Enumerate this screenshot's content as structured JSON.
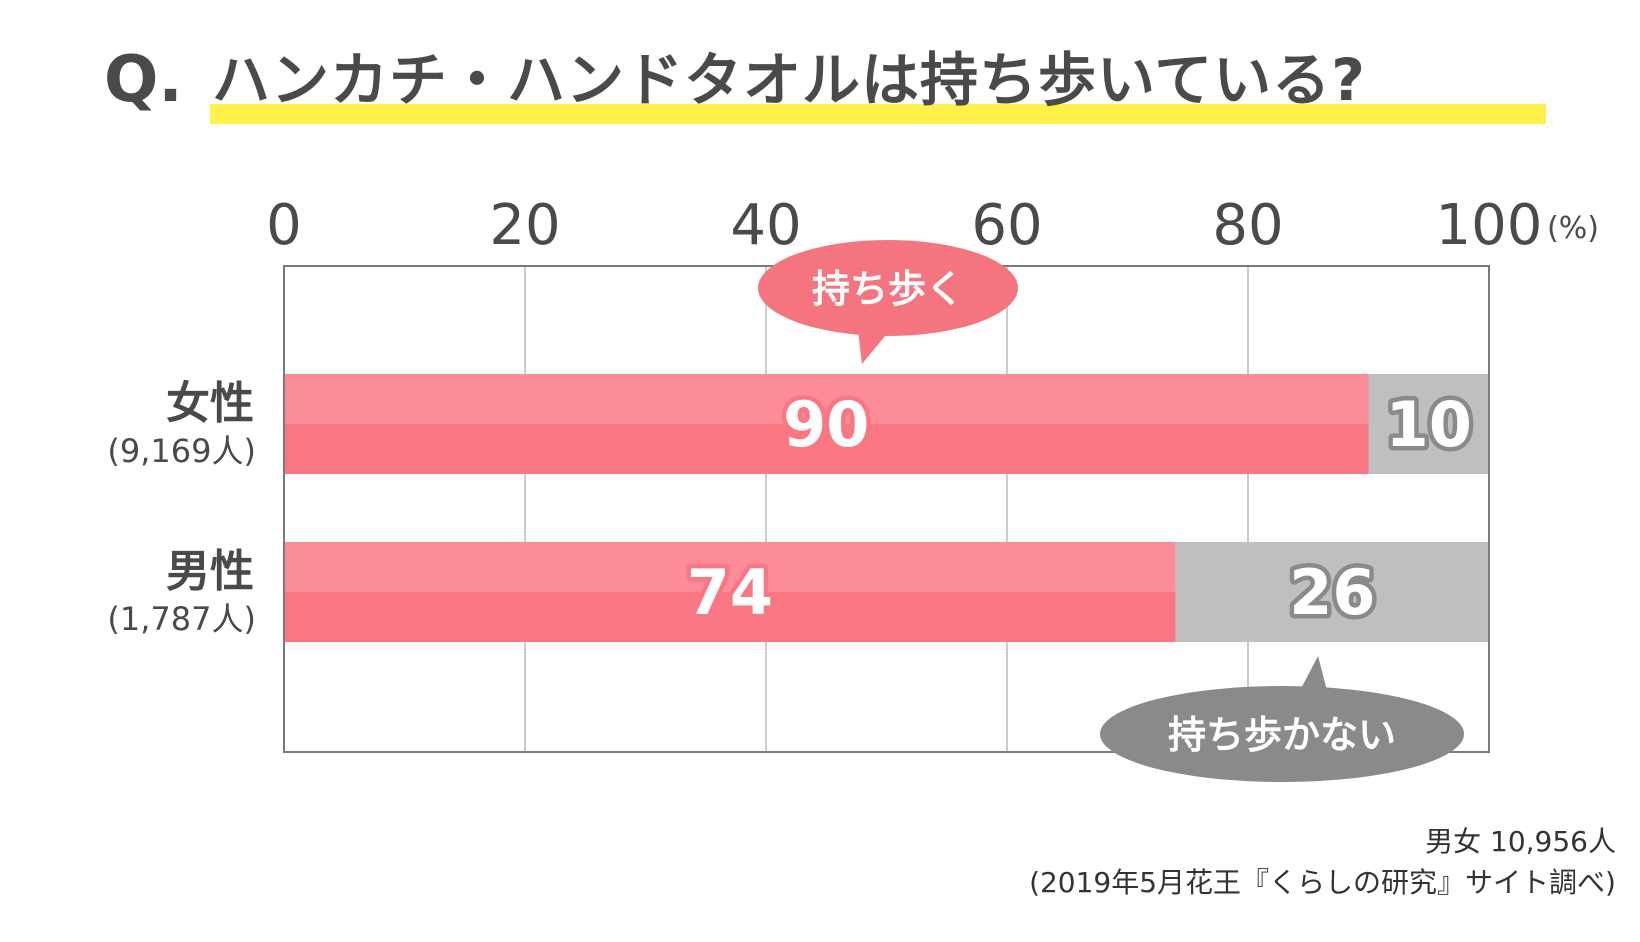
{
  "title": {
    "prefix": "Q.",
    "text": "ハンカチ・ハンドタオルは持ち歩いている?"
  },
  "colors": {
    "carry_top": "#fc8d98",
    "carry_bottom": "#f87782",
    "not_carry": "#bfbfbf",
    "bubble_carry": "#f47580",
    "bubble_not_carry": "#8a8a8a",
    "highlight": "#fff04a",
    "grid": "#bcbcbc",
    "frame": "#7a7a7a"
  },
  "chart_data": {
    "type": "bar",
    "orientation": "horizontal",
    "stacked": true,
    "xlim": [
      0,
      100
    ],
    "x_ticks": [
      "0",
      "20",
      "40",
      "60",
      "80",
      "100"
    ],
    "x_unit": "(%)",
    "grid": true,
    "categories": [
      {
        "label": "女性",
        "sub": "(9,169人)"
      },
      {
        "label": "男性",
        "sub": "(1,787人)"
      }
    ],
    "series": [
      {
        "name": "持ち歩く",
        "values": [
          90,
          74
        ],
        "value_labels": [
          "90",
          "74"
        ]
      },
      {
        "name": "持ち歩かない",
        "values": [
          10,
          26
        ],
        "value_labels": [
          "10",
          "26"
        ]
      }
    ]
  },
  "footnote": {
    "line1": "男女 10,956人",
    "line2": "(2019年5月花王『くらしの研究』サイト調べ)"
  }
}
